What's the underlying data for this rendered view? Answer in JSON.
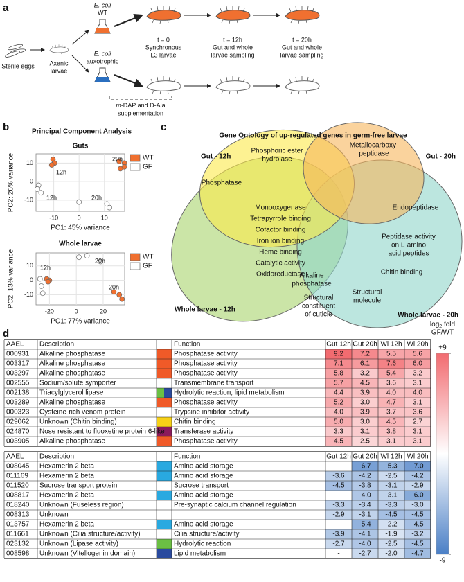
{
  "panel_labels": [
    "a",
    "b",
    "c",
    "d"
  ],
  "schematic": {
    "eggs": "Sterile eggs",
    "axenic": [
      "Axenic",
      "larvae"
    ],
    "wt_strain": [
      "E. coli",
      "WT"
    ],
    "aux_strain": [
      "E. coli",
      "auxotrophic"
    ],
    "supplement": [
      "m",
      "-DAP and D-Ala",
      "supplementation"
    ],
    "steps": [
      [
        "t = 0",
        "Synchronous",
        "L3 larvae"
      ],
      [
        "t = 12h",
        "Gut and whole",
        "larvae sampling"
      ],
      [
        "t = 20h",
        "Gut and whole",
        "larvae sampling"
      ]
    ]
  },
  "pca_title": "Principal Component Analysis",
  "chart_data": [
    {
      "type": "scatter",
      "title": "Guts",
      "x_label": "PC1: 45% variance",
      "y_label": "PC2: 26% variance",
      "xlim": [
        -17,
        18
      ],
      "ylim": [
        -16,
        15
      ],
      "xticks": [
        -10,
        0,
        10
      ],
      "yticks": [
        -10,
        0,
        10
      ],
      "grid": true,
      "legend": "right",
      "series": [
        {
          "name": "WT",
          "color": "#f07030",
          "x": [
            -10.3,
            -9.7,
            -10.8,
            15.8,
            17.9,
            16.3,
            17.9
          ],
          "y": [
            12,
            10,
            9,
            11,
            10,
            7,
            8
          ]
        },
        {
          "name": "GF",
          "color": "#ffffff",
          "x": [
            -16,
            -16.5,
            -15,
            0,
            11,
            12
          ],
          "y": [
            -2,
            -4,
            -6,
            -11,
            -12,
            -14
          ]
        }
      ],
      "annotations": [
        "12h",
        "12h",
        "20h",
        "20h"
      ]
    },
    {
      "type": "scatter",
      "title": "Whole larvae",
      "x_label": "PC1: 77% variance",
      "y_label": "PC2: 13% variance",
      "xlim": [
        -30,
        36
      ],
      "ylim": [
        -17,
        19
      ],
      "xticks": [
        -20,
        0,
        20
      ],
      "yticks": [
        -10,
        0,
        10
      ],
      "grid": true,
      "legend": "right",
      "series": [
        {
          "name": "WT",
          "color": "#f07030",
          "x": [
            -22,
            -20,
            -21,
            28,
            32,
            34
          ],
          "y": [
            1,
            0,
            -1,
            -8,
            -10,
            -13
          ]
        },
        {
          "name": "GF",
          "color": "#ffffff",
          "x": [
            -27,
            -26,
            -25,
            2,
            8,
            18
          ],
          "y": [
            1,
            -4,
            -9,
            16,
            17,
            13
          ]
        }
      ],
      "annotations": [
        "20h",
        "12h",
        "20h"
      ]
    }
  ],
  "venn": {
    "title": "Gene Ontology of up-regulated genes in germ-free larvae",
    "sets": [
      "Gut - 12h",
      "Gut - 20h",
      "Whole larvae - 12h",
      "Whole larvae - 20h"
    ],
    "set_colors": [
      "#fbe94a",
      "#f6b65c",
      "#a9d36c",
      "#8fd6c9"
    ],
    "terms": [
      [
        "Phosphoric ester",
        "hydrolase"
      ],
      [
        "Metallocarboxy-",
        "peptidase"
      ],
      [
        "Phosphatase"
      ],
      [
        "Monooxygenase",
        "Tetrapyrrole binding",
        "Cofactor binding",
        "Iron ion binding",
        "Heme binding",
        "Catalytic activity",
        "Oxidoreductase"
      ],
      [
        "Alkaline",
        "phosphatase"
      ],
      [
        "Endopeptidase"
      ],
      [
        "Peptidase activity",
        "on L-amino",
        "acid peptides"
      ],
      [
        "Chitin binding"
      ],
      [
        "Structural",
        "constituent",
        "of cuticle"
      ],
      [
        "Structural",
        "molecule"
      ]
    ]
  },
  "colorbar": {
    "title": [
      "log",
      "2",
      " fold"
    ],
    "subtitle": "GF/WT",
    "ticks": [
      {
        "value": 9,
        "label": "+9"
      },
      -9
    ],
    "colors": [
      "#f26b70",
      "#ffffff",
      "#4a7fc6"
    ]
  },
  "tables": [
    {
      "headers": [
        "AAEL",
        "Description",
        "Function",
        "Gut 12h",
        "Gut 20h",
        "Wl 12h",
        "Wl 20h"
      ],
      "rows": [
        {
          "aael": "000931",
          "description": "Alkaline phosphatase",
          "swatch": [
            "#f05a28"
          ],
          "function": "Phosphatase activity",
          "values": [
            "9.2",
            "7.2",
            "5.5",
            "5.6"
          ]
        },
        {
          "aael": "003317",
          "description": "Alkaline phosphatase",
          "swatch": [
            "#f05a28"
          ],
          "function": "Phosphatase activity",
          "values": [
            "7.1",
            "6.1",
            "7.6",
            "6.0"
          ]
        },
        {
          "aael": "003297",
          "description": "Alkaline phosphatase",
          "swatch": [
            "#f05a28"
          ],
          "function": "Phosphatase activity",
          "values": [
            "5.8",
            "3.2",
            "5.4",
            "3.2"
          ]
        },
        {
          "aael": "002555",
          "description": "Sodium/solute symporter",
          "swatch": [],
          "function": "Transmembrane transport",
          "values": [
            "5.7",
            "4.5",
            "3.6",
            "3.1"
          ]
        },
        {
          "aael": "002138",
          "description": "Triacylglycerol lipase",
          "swatch": [
            "#6bbf44",
            "#2a4a9e"
          ],
          "function": "Hydrolytic reaction; lipid metabolism",
          "values": [
            "4.4",
            "3.9",
            "4.0",
            "4.0"
          ]
        },
        {
          "aael": "003289",
          "description": "Alkaline phosphatase",
          "swatch": [
            "#f05a28"
          ],
          "function": "Phosphatase activity",
          "values": [
            "5.2",
            "3.0",
            "4.7",
            "3.1"
          ]
        },
        {
          "aael": "000323",
          "description": "Cysteine-rich venom protein",
          "swatch": [],
          "function": "Trypsine inhibitor activity",
          "values": [
            "4.0",
            "3.9",
            "3.7",
            "3.6"
          ]
        },
        {
          "aael": "029062",
          "description": "Unknown (Chitin binding)",
          "swatch": [
            "#f7d117"
          ],
          "function": "Chitin binding",
          "values": [
            "5.0",
            "3.0",
            "4.5",
            "2.7"
          ]
        },
        {
          "aael": "024870",
          "description": "Nose resistant to fluoxetine protein 6-like",
          "swatch": [
            "#8b1a5c"
          ],
          "function": "Transferase activity",
          "values": [
            "3.3",
            "3.1",
            "3.8",
            "3.1"
          ]
        },
        {
          "aael": "003905",
          "description": "Alkaline phosphatase",
          "swatch": [
            "#f05a28"
          ],
          "function": "Phosphatase activity",
          "values": [
            "4.5",
            "2.5",
            "3.1",
            "3.1"
          ]
        }
      ]
    },
    {
      "headers": [
        "AAEL",
        "Description",
        "Function",
        "Gut 12h",
        "Gut 20h",
        "Wl 12h",
        "Wl 20h"
      ],
      "rows": [
        {
          "aael": "008045",
          "description": "Hexamerin 2 beta",
          "swatch": [
            "#29a9e0"
          ],
          "function": "Amino acid storage",
          "values": [
            "-",
            "-6.7",
            "-5.3",
            "-7.0"
          ]
        },
        {
          "aael": "011169",
          "description": "Hexamerin 2 beta",
          "swatch": [
            "#29a9e0"
          ],
          "function": "Amino acid storage",
          "values": [
            "-3.6",
            "-4.2",
            "-2.5",
            "-4.2"
          ]
        },
        {
          "aael": "011520",
          "description": "Sucrose transport protein",
          "swatch": [],
          "function": "Sucrose transport",
          "values": [
            "-4.5",
            "-3.8",
            "-3.1",
            "-2.9"
          ]
        },
        {
          "aael": "008817",
          "description": "Hexamerin 2 beta",
          "swatch": [
            "#29a9e0"
          ],
          "function": "Amino acid storage",
          "values": [
            "-",
            "-4.0",
            "-3.1",
            "-6.0"
          ]
        },
        {
          "aael": "018240",
          "description": "Unknown (Fuseless region)",
          "swatch": [],
          "function": "Pre-synaptic calcium channel regulation",
          "values": [
            "-3.3",
            "-3.4",
            "-3.3",
            "-3.0"
          ]
        },
        {
          "aael": "008313",
          "description": "Unknown",
          "swatch": [],
          "function": null,
          "values": [
            "-2.9",
            "-3.1",
            "-4.5",
            "-4.5"
          ]
        },
        {
          "aael": "013757",
          "description": "Hexamerin 2 beta",
          "swatch": [
            "#29a9e0"
          ],
          "function": "Amino acid storage",
          "values": [
            "-",
            "-5.4",
            "-2.2",
            "-4.5"
          ]
        },
        {
          "aael": "011661",
          "description": "Unknown (Cilia structure/activity)",
          "swatch": [],
          "function": "Cilia structure/activity",
          "values": [
            "-3.9",
            "-4.1",
            "-1.9",
            "-3.2"
          ]
        },
        {
          "aael": "023132",
          "description": "Unknown (Lipase activity)",
          "swatch": [
            "#6bbf44"
          ],
          "function": "Hydrolytic reaction",
          "values": [
            "-2.7",
            "-4.0",
            "-2.5",
            "-4.5"
          ]
        },
        {
          "aael": "008598",
          "description": "Unknown (Vitellogenin domain)",
          "swatch": [
            "#2a4a9e"
          ],
          "function": "Lipid metabolism",
          "values": [
            "-",
            "-2.7",
            "-2.0",
            "-4.7"
          ]
        }
      ]
    }
  ]
}
